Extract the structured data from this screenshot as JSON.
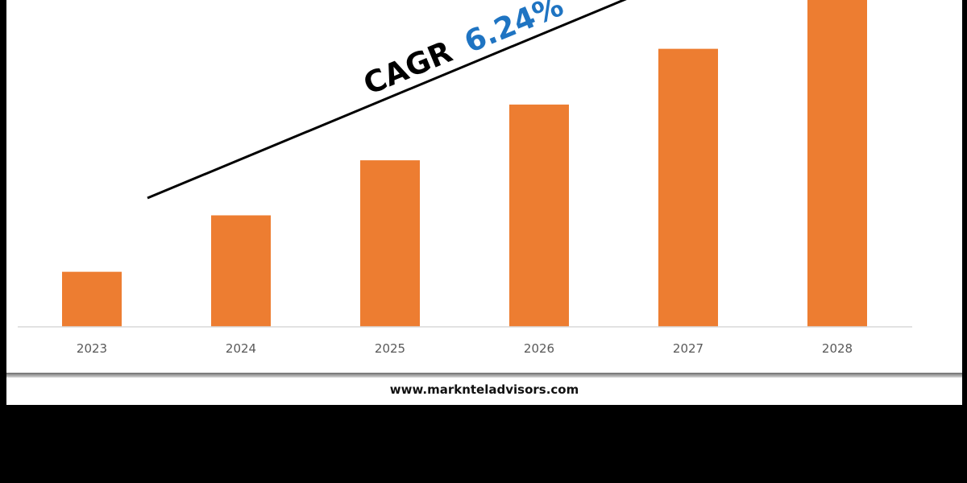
{
  "colors": {
    "bar": "#ED7D31",
    "cagr_label": "#000000",
    "cagr_value": "#1F74C2",
    "axis": "#D9D9D9",
    "tick_label": "#595959",
    "trend_line": "#000000",
    "background": "#000000"
  },
  "annotation": {
    "label": "CAGR",
    "value": "6.24%"
  },
  "footer": {
    "url": "www.marknteladvisors.com"
  },
  "chart_data": {
    "type": "bar",
    "categories": [
      "2023",
      "2024",
      "2025",
      "2026",
      "2027",
      "2028"
    ],
    "values": [
      78,
      158,
      236,
      315,
      394,
      470
    ],
    "ylim": [
      0,
      470
    ],
    "grid": false,
    "legend": "none",
    "annotation": "CAGR 6.24%",
    "trend_line": true
  }
}
